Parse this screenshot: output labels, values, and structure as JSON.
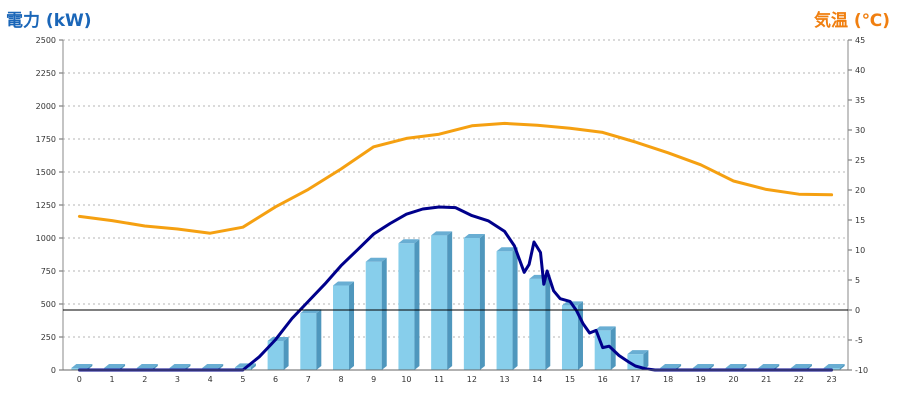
{
  "chart_data": {
    "type": "bar",
    "title_left": "電力 (kW)",
    "title_right": "気温 (℃)",
    "x": [
      "0",
      "1",
      "2",
      "3",
      "4",
      "5",
      "6",
      "7",
      "8",
      "9",
      "10",
      "11",
      "12",
      "13",
      "14",
      "15",
      "16",
      "17",
      "18",
      "19",
      "20",
      "21",
      "22",
      "23"
    ],
    "y_left": {
      "ticks": [
        "0",
        "250",
        "500",
        "750",
        "1000",
        "1250",
        "1500",
        "1750",
        "2000",
        "2250",
        "2500"
      ],
      "range": [
        0,
        2500
      ]
    },
    "y_right": {
      "ticks": [
        "-10",
        "-5",
        "0",
        "5",
        "10",
        "15",
        "20",
        "25",
        "30",
        "35",
        "40",
        "45"
      ],
      "range": [
        -10,
        45
      ]
    },
    "grid": true,
    "bars": {
      "axis": "left",
      "color": "#87ceeb",
      "values": [
        15,
        15,
        15,
        15,
        15,
        20,
        220,
        430,
        640,
        820,
        960,
        1020,
        1000,
        900,
        690,
        490,
        300,
        120,
        15,
        15,
        15,
        15,
        15,
        15
      ]
    },
    "series": [
      {
        "axis": "right",
        "color": "#f5a011",
        "type": "line",
        "x": [
          0,
          1,
          2,
          3,
          4,
          5,
          6,
          7,
          8,
          9,
          10,
          11,
          12,
          13,
          14,
          15,
          16,
          17,
          18,
          19,
          20,
          21,
          22,
          23
        ],
        "values": [
          15.6,
          14.9,
          14.0,
          13.5,
          12.8,
          13.8,
          17.2,
          20.1,
          23.5,
          27.2,
          28.6,
          29.3,
          30.7,
          31.1,
          30.8,
          30.3,
          29.6,
          28.0,
          26.2,
          24.2,
          21.5,
          20.1,
          19.3,
          19.2
        ]
      },
      {
        "axis": "left",
        "color": "#00008b",
        "type": "line",
        "x": [
          0,
          1,
          2,
          3,
          4,
          5,
          5.5,
          6,
          6.5,
          7,
          7.5,
          8,
          8.5,
          9,
          9.5,
          10,
          10.5,
          11,
          11.5,
          12,
          12.5,
          13,
          13.3,
          13.6,
          13.75,
          13.9,
          14.1,
          14.2,
          14.3,
          14.5,
          14.7,
          15,
          15.2,
          15.4,
          15.6,
          15.8,
          16,
          16.2,
          16.5,
          16.8,
          17,
          17.3,
          17.6,
          18,
          19,
          20,
          21,
          22,
          23
        ],
        "values": [
          0,
          0,
          0,
          0,
          0,
          0,
          100,
          230,
          390,
          520,
          650,
          790,
          910,
          1030,
          1110,
          1180,
          1220,
          1235,
          1230,
          1170,
          1130,
          1050,
          940,
          740,
          800,
          970,
          890,
          650,
          750,
          600,
          540,
          520,
          450,
          350,
          280,
          300,
          170,
          180,
          110,
          60,
          30,
          10,
          0,
          0,
          0,
          0,
          0,
          0,
          0
        ]
      }
    ]
  }
}
